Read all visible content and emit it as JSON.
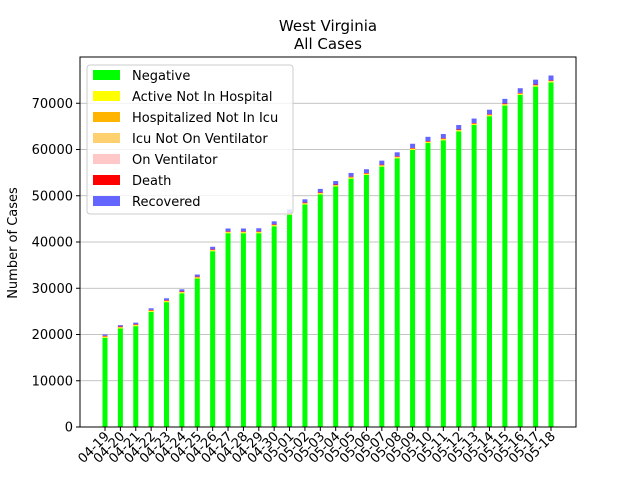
{
  "chart_data": {
    "type": "bar",
    "stacked": true,
    "title_line1": "West Virginia",
    "title_line2": "All Cases",
    "xlabel": "",
    "ylabel": "Number of Cases",
    "ylim": [
      0,
      80000
    ],
    "yticks": [
      0,
      10000,
      20000,
      30000,
      40000,
      50000,
      60000,
      70000
    ],
    "grid": "horizontal",
    "legend_position": "upper-left",
    "categories": [
      "04-19",
      "04-20",
      "04-21",
      "04-22",
      "04-23",
      "04-24",
      "04-25",
      "04-26",
      "04-27",
      "04-28",
      "04-29",
      "04-30",
      "05-01",
      "05-02",
      "05-03",
      "05-04",
      "05-05",
      "05-06",
      "05-07",
      "05-08",
      "05-09",
      "05-10",
      "05-11",
      "05-12",
      "05-13",
      "05-14",
      "05-15",
      "05-16",
      "05-17",
      "05-18"
    ],
    "series": [
      {
        "name": "Negative",
        "color": "#00ff00",
        "values": [
          19300,
          21300,
          21800,
          24900,
          27000,
          28900,
          32100,
          38000,
          41900,
          41900,
          41900,
          43400,
          45900,
          48100,
          50300,
          52000,
          53700,
          54500,
          56300,
          58100,
          59900,
          61400,
          62000,
          63900,
          65300,
          67200,
          69500,
          71800,
          73600,
          74500
        ]
      },
      {
        "name": "Active Not In Hospital",
        "color": "#ffff00",
        "values": [
          300,
          300,
          300,
          300,
          300,
          300,
          300,
          300,
          300,
          300,
          300,
          300,
          300,
          300,
          300,
          300,
          300,
          300,
          300,
          300,
          300,
          300,
          300,
          300,
          300,
          300,
          300,
          300,
          300,
          300
        ]
      },
      {
        "name": "Hospitalized Not In Icu",
        "color": "#ffb400",
        "values": [
          50,
          50,
          50,
          50,
          50,
          50,
          50,
          50,
          50,
          50,
          50,
          50,
          50,
          50,
          50,
          50,
          50,
          50,
          50,
          50,
          50,
          50,
          50,
          50,
          50,
          50,
          50,
          50,
          50,
          50
        ]
      },
      {
        "name": "Icu Not On Ventilator",
        "color": "#ffd070",
        "values": [
          30,
          30,
          30,
          30,
          30,
          30,
          30,
          30,
          30,
          30,
          30,
          30,
          30,
          30,
          30,
          30,
          30,
          30,
          30,
          30,
          30,
          30,
          30,
          30,
          30,
          30,
          30,
          30,
          30,
          30
        ]
      },
      {
        "name": "On Ventilator",
        "color": "#ffc8c8",
        "values": [
          10,
          10,
          10,
          10,
          10,
          10,
          10,
          10,
          10,
          10,
          10,
          10,
          10,
          10,
          10,
          10,
          10,
          10,
          10,
          10,
          10,
          10,
          10,
          10,
          10,
          10,
          10,
          10,
          10,
          10
        ]
      },
      {
        "name": "Death",
        "color": "#ff0000",
        "values": [
          30,
          30,
          30,
          30,
          30,
          30,
          30,
          30,
          30,
          30,
          30,
          30,
          40,
          40,
          40,
          40,
          40,
          40,
          50,
          50,
          50,
          50,
          50,
          50,
          50,
          60,
          60,
          60,
          60,
          60
        ]
      },
      {
        "name": "Recovered",
        "color": "#6464ff",
        "values": [
          300,
          300,
          350,
          350,
          400,
          450,
          450,
          550,
          600,
          600,
          650,
          650,
          700,
          700,
          750,
          750,
          800,
          800,
          850,
          850,
          900,
          900,
          900,
          950,
          950,
          950,
          1000,
          1000,
          1050,
          1050
        ]
      }
    ]
  }
}
